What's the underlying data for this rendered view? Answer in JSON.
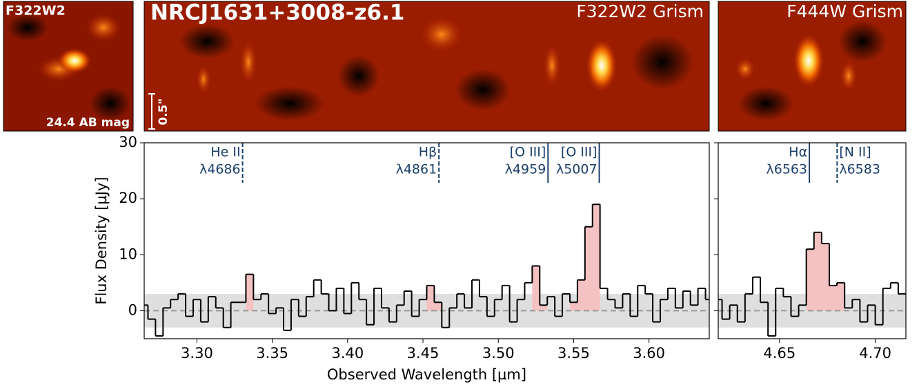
{
  "figure": {
    "title": "NRCJ1631+3008-z6.1",
    "thumbnail_label": "F322W2",
    "thumbnail_magnitude": "24.4 AB mag",
    "scale_bar": "0.5\"",
    "grism_labels": [
      "F322W2 Grism",
      "F444W Grism"
    ]
  },
  "chart_data": [
    {
      "type": "step",
      "y_label": "Flux Density [µJy]",
      "x_label": "Observed Wavelength [µm]",
      "xlim": [
        3.265,
        3.64
      ],
      "ylim": [
        -5,
        30
      ],
      "xticks": [
        {
          "value": 3.3,
          "label": "3.30"
        },
        3.35,
        {
          "value": 3.4,
          "label": "3.40"
        },
        3.45,
        {
          "value": 3.5,
          "label": "3.50"
        },
        3.55,
        {
          "value": 3.6,
          "label": "3.60"
        }
      ],
      "yticks": [
        0,
        10,
        20,
        30
      ],
      "color": "#000000",
      "error": 3,
      "error_color": "#d9d9d9",
      "fill_color": "#f4c2c2",
      "x": [
        3.265,
        3.27,
        3.275,
        3.28,
        3.285,
        3.29,
        3.295,
        3.3,
        3.305,
        3.31,
        3.315,
        3.32,
        3.325,
        3.33,
        3.335,
        3.34,
        3.345,
        3.35,
        3.355,
        3.36,
        3.365,
        3.37,
        3.375,
        3.38,
        3.385,
        3.39,
        3.395,
        3.4,
        3.405,
        3.41,
        3.415,
        3.42,
        3.425,
        3.43,
        3.435,
        3.44,
        3.445,
        3.45,
        3.455,
        3.46,
        3.465,
        3.47,
        3.475,
        3.48,
        3.485,
        3.49,
        3.495,
        3.5,
        3.505,
        3.51,
        3.515,
        3.52,
        3.525,
        3.53,
        3.535,
        3.54,
        3.545,
        3.55,
        3.555,
        3.56,
        3.565,
        3.57,
        3.575,
        3.58,
        3.585,
        3.59,
        3.595,
        3.6,
        3.605,
        3.61,
        3.615,
        3.62,
        3.625,
        3.63,
        3.635,
        3.64
      ],
      "values": [
        1,
        -1.5,
        -4.5,
        0.5,
        2,
        3,
        -1,
        2,
        -2,
        2.5,
        0.5,
        -3,
        1.5,
        1.5,
        6.5,
        2,
        3,
        -0.5,
        0.5,
        -3.5,
        2,
        -1,
        2.5,
        5.5,
        3,
        0,
        4,
        -0.5,
        5,
        2,
        -2.5,
        4,
        0.5,
        -2,
        1,
        3.5,
        -1,
        2,
        4.5,
        1.5,
        -3,
        0.5,
        3,
        0.5,
        5.5,
        2.5,
        -1,
        2,
        4.5,
        -2,
        2,
        5,
        8,
        1,
        2.5,
        -1,
        3,
        1.5,
        5.5,
        15,
        19,
        4,
        2,
        0.5,
        3,
        -1,
        4.5,
        3,
        -2,
        2,
        4,
        0.5,
        3.5,
        1,
        4,
        2
      ],
      "fill_ranges": [
        [
          3.3325,
          3.3375
        ],
        [
          3.4525,
          3.4625
        ],
        [
          3.5225,
          3.5325
        ],
        [
          3.5475,
          3.5675
        ]
      ],
      "lines": [
        {
          "name": "He II",
          "label": "λ4686",
          "x": 3.3303,
          "dashed": true,
          "align": "right"
        },
        {
          "name": "Hβ",
          "label": "λ4861",
          "x": 3.4606,
          "dashed": true,
          "align": "right"
        },
        {
          "name": "[O III]",
          "label": "λ4959",
          "x": 3.533,
          "dashed": false,
          "align": "right"
        },
        {
          "name": "[O III]",
          "label": "λ5007",
          "x": 3.567,
          "dashed": false,
          "align": "right"
        }
      ]
    },
    {
      "type": "step",
      "xlim": [
        4.618,
        4.716
      ],
      "xticks": [
        4.65,
        {
          "value": 4.7,
          "label": "4.70"
        }
      ],
      "color": "#000000",
      "error": 3,
      "error_color": "#d9d9d9",
      "fill_color": "#f4c2c2",
      "x": [
        4.618,
        4.622,
        4.626,
        4.63,
        4.634,
        4.638,
        4.642,
        4.646,
        4.65,
        4.654,
        4.658,
        4.662,
        4.666,
        4.67,
        4.674,
        4.678,
        4.682,
        4.686,
        4.69,
        4.694,
        4.698,
        4.702,
        4.706,
        4.71,
        4.714
      ],
      "values": [
        2,
        -1.5,
        1,
        -2,
        3,
        6,
        1.5,
        -4.5,
        4,
        2.5,
        -1,
        1,
        11,
        14,
        12,
        4.5,
        5,
        0.5,
        2,
        -2,
        1,
        -2.5,
        4,
        5,
        3
      ],
      "fill_ranges": [
        [
          4.664,
          4.684
        ]
      ],
      "lines": [
        {
          "name": "Hα",
          "label": "λ6563",
          "x": 4.6656,
          "dashed": false,
          "align": "right"
        },
        {
          "name": "[N II]",
          "label": "λ6583",
          "x": 4.6801,
          "dashed": true,
          "align": "left"
        }
      ]
    }
  ]
}
